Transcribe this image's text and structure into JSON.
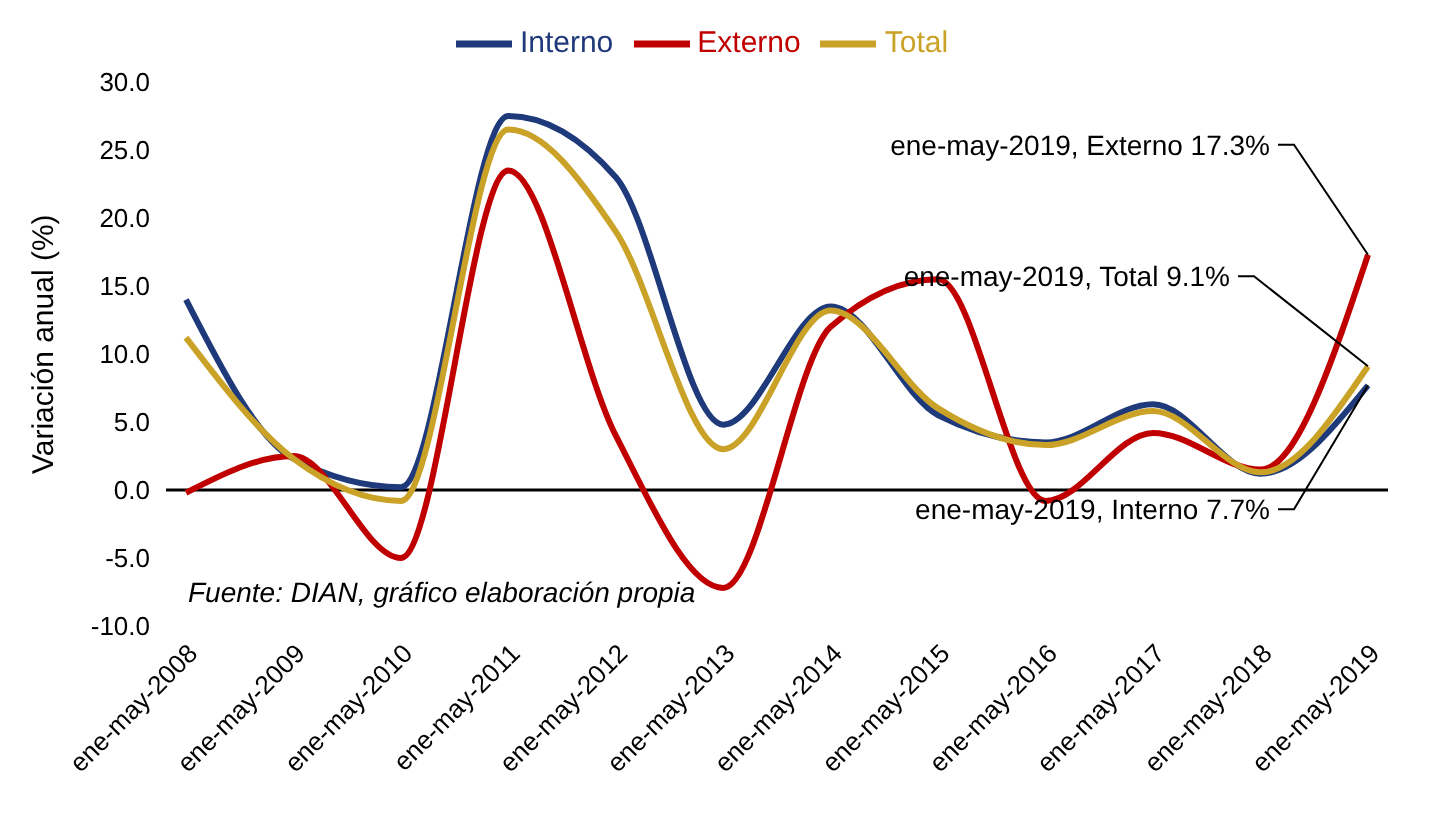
{
  "chart_data": {
    "type": "line",
    "ylabel": "Variación anual (%)",
    "categories": [
      "ene-may-2008",
      "ene-may-2009",
      "ene-may-2010",
      "ene-may-2011",
      "ene-may-2012",
      "ene-may-2013",
      "ene-may-2014",
      "ene-may-2015",
      "ene-may-2016",
      "ene-may-2017",
      "ene-may-2018",
      "ene-may-2019"
    ],
    "series": [
      {
        "name": "Interno",
        "color": "#1f3a7a",
        "values": [
          14.0,
          2.3,
          0.2,
          27.5,
          23.0,
          4.8,
          13.5,
          5.5,
          3.5,
          6.3,
          1.2,
          7.7
        ]
      },
      {
        "name": "Externo",
        "color": "#c00000",
        "values": [
          -0.2,
          2.5,
          -5.0,
          23.5,
          4.0,
          -7.2,
          12.0,
          15.5,
          -0.8,
          4.2,
          1.5,
          17.3
        ]
      },
      {
        "name": "Total",
        "color": "#c9a227",
        "values": [
          11.2,
          2.3,
          -0.8,
          26.5,
          19.0,
          3.0,
          13.2,
          6.0,
          3.3,
          5.8,
          1.3,
          9.1
        ]
      }
    ],
    "ylim": [
      -10,
      30
    ],
    "yticks": [
      {
        "value": -10,
        "label": "-10.0"
      },
      {
        "value": -5,
        "label": "-5.0"
      },
      {
        "value": 0,
        "label": "0.0"
      },
      {
        "value": 5,
        "label": "5.0"
      },
      {
        "value": 10,
        "label": "10.0"
      },
      {
        "value": 15,
        "label": "15.0"
      },
      {
        "value": 20,
        "label": "20.0"
      },
      {
        "value": 25,
        "label": "25.0"
      },
      {
        "value": 30,
        "label": "30.0"
      }
    ],
    "annotations": [
      {
        "text": "ene-may-2019, Externo 17.3%",
        "x": "ene-may-2019",
        "y": 17.3
      },
      {
        "text": "ene-may-2019, Total 9.1%",
        "x": "ene-may-2019",
        "y": 9.1
      },
      {
        "text": "ene-may-2019, Interno 7.7%",
        "x": "ene-may-2019",
        "y": 7.7
      },
      "Fuente: DIAN, gráfico elaboración propia"
    ],
    "ref_lines": [
      {
        "axis": "y",
        "value": 0,
        "color": "#000000"
      }
    ],
    "legend": "top",
    "marker": "none",
    "line_style": "solid"
  }
}
